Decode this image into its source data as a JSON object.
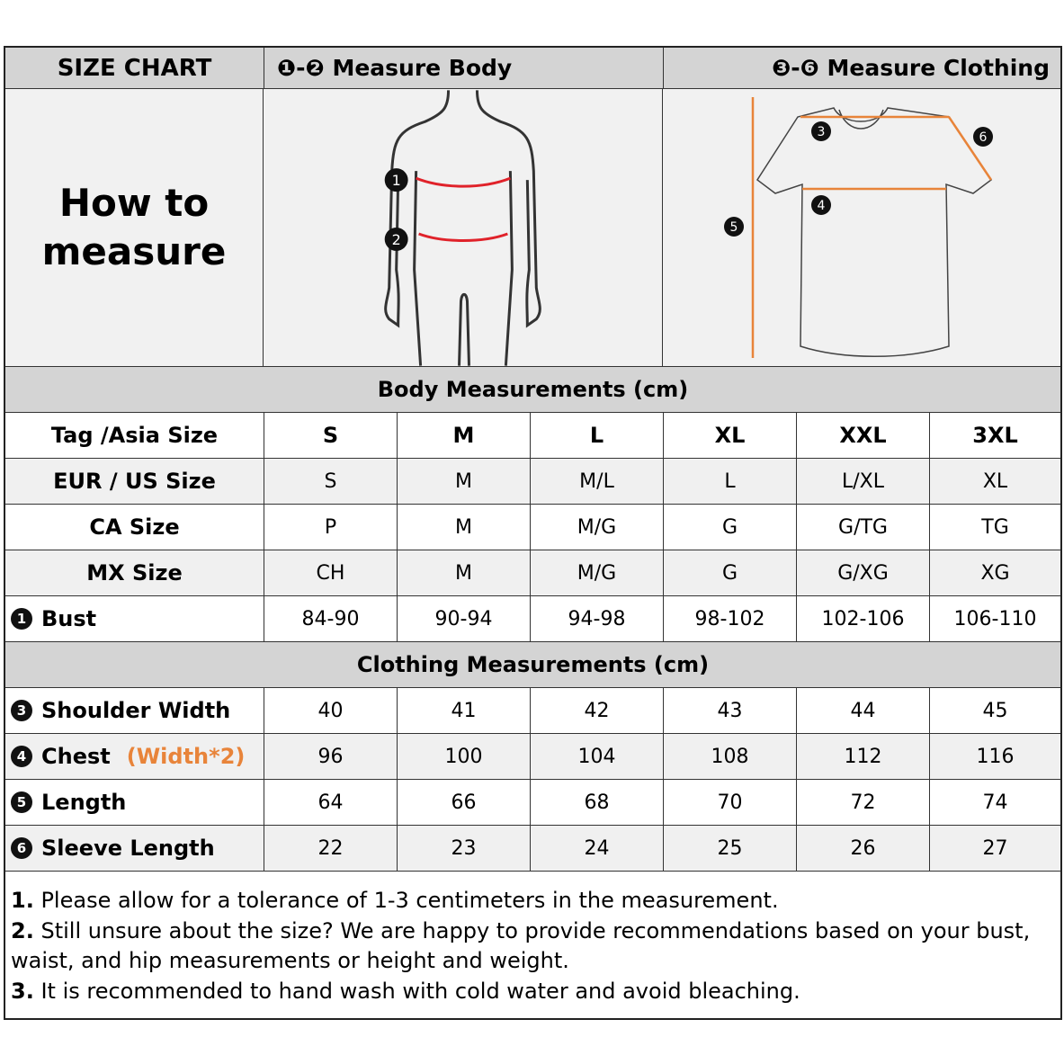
{
  "header": {
    "size_chart": "SIZE CHART",
    "body_nums": "❶-❷",
    "measure_body": "Measure Body",
    "cloth_nums": "❸-❻",
    "measure_clothing": "Measure Clothing"
  },
  "how_to": [
    "How to",
    "measure"
  ],
  "diagram_labels": {
    "body": [
      "1",
      "2"
    ],
    "shirt": [
      "3",
      "4",
      "5",
      "6"
    ]
  },
  "body_section": "Body Measurements (cm)",
  "size_rows": [
    {
      "label": "Tag /Asia Size",
      "values": [
        "S",
        "M",
        "L",
        "XL",
        "XXL",
        "3XL"
      ]
    },
    {
      "label": "EUR / US Size",
      "values": [
        "S",
        "M",
        "M/L",
        "L",
        "L/XL",
        "XL"
      ]
    },
    {
      "label": "CA Size",
      "values": [
        "P",
        "M",
        "M/G",
        "G",
        "G/TG",
        "TG"
      ]
    },
    {
      "label": "MX Size",
      "values": [
        "CH",
        "M",
        "M/G",
        "G",
        "G/XG",
        "XG"
      ]
    },
    {
      "num": "1",
      "label": "Bust",
      "values": [
        "84-90",
        "90-94",
        "94-98",
        "98-102",
        "102-106",
        "106-110"
      ]
    }
  ],
  "clothing_section": "Clothing Measurements  (cm)",
  "clothing_rows": [
    {
      "num": "3",
      "label": "Shoulder Width",
      "values": [
        "40",
        "41",
        "42",
        "43",
        "44",
        "45"
      ]
    },
    {
      "num": "4",
      "label": "Chest",
      "note": "(Width*2)",
      "values": [
        "96",
        "100",
        "104",
        "108",
        "112",
        "116"
      ]
    },
    {
      "num": "5",
      "label": "Length",
      "values": [
        "64",
        "66",
        "68",
        "70",
        "72",
        "74"
      ]
    },
    {
      "num": "6",
      "label": "Sleeve Length",
      "values": [
        "22",
        "23",
        "24",
        "25",
        "26",
        "27"
      ]
    }
  ],
  "notes": [
    {
      "n": "1.",
      "text": " Please allow for a tolerance of 1-3 centimeters in the measurement."
    },
    {
      "n": "2.",
      "text": " Still unsure about the size? We are happy to provide recommendations based on your bust, waist, and hip measurements or height and weight."
    },
    {
      "n": "3.",
      "text": " It is recommended to hand wash with cold water and avoid bleaching."
    }
  ],
  "colors": {
    "accent_orange": "#e8843a",
    "body_line_red": "#e0222a",
    "header_gray": "#d4d4d4"
  }
}
